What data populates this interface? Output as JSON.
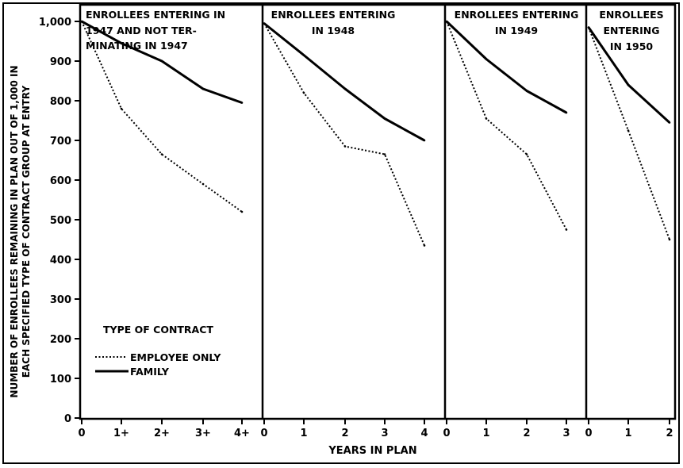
{
  "chart_data": {
    "type": "line",
    "xlabel": "YEARS IN PLAN",
    "ylabel_lines": [
      "NUMBER OF ENROLLEES REMAINING IN PLAN OUT OF 1,000 IN",
      "EACH SPECIFIED TYPE OF CONTRACT GROUP AT ENTRY"
    ],
    "ylim": [
      0,
      1000
    ],
    "yticks": [
      "0",
      "100",
      "200",
      "300",
      "400",
      "500",
      "600",
      "700",
      "800",
      "900",
      "1,000"
    ],
    "legend": {
      "title": "TYPE OF CONTRACT",
      "entries": [
        {
          "label": "EMPLOYEE ONLY",
          "style": "dotted"
        },
        {
          "label": "FAMILY",
          "style": "solid"
        }
      ]
    },
    "panels": [
      {
        "title_lines": [
          "ENROLLEES ENTERING IN",
          "1947 AND NOT TER-",
          "MINATING IN 1947"
        ],
        "x": [
          "0",
          "1+",
          "2+",
          "3+",
          "4+"
        ],
        "series": [
          {
            "name": "EMPLOYEE ONLY",
            "values": [
              1000,
              780,
              665,
              590,
              520
            ]
          },
          {
            "name": "FAMILY",
            "values": [
              1000,
              945,
              900,
              830,
              795
            ]
          }
        ]
      },
      {
        "title_lines": [
          "ENROLLEES ENTERING",
          "IN 1948"
        ],
        "x": [
          "0",
          "1",
          "2",
          "3",
          "4"
        ],
        "series": [
          {
            "name": "EMPLOYEE ONLY",
            "values": [
              995,
              820,
              685,
              665,
              435
            ]
          },
          {
            "name": "FAMILY",
            "values": [
              995,
              915,
              830,
              755,
              700
            ]
          }
        ]
      },
      {
        "title_lines": [
          "ENROLLEES ENTERING",
          "IN 1949"
        ],
        "x": [
          "0",
          "1",
          "2",
          "3"
        ],
        "series": [
          {
            "name": "EMPLOYEE ONLY",
            "values": [
              1000,
              755,
              665,
              475
            ]
          },
          {
            "name": "FAMILY",
            "values": [
              1000,
              905,
              825,
              770
            ]
          }
        ]
      },
      {
        "title_lines": [
          "ENROLLEES",
          "ENTERING",
          "IN 1950"
        ],
        "x": [
          "0",
          "1",
          "2"
        ],
        "series": [
          {
            "name": "EMPLOYEE ONLY",
            "values": [
              985,
              725,
              450
            ]
          },
          {
            "name": "FAMILY",
            "values": [
              985,
              840,
              745
            ]
          }
        ]
      }
    ],
    "colors": {
      "line": "#000000",
      "background": "#ffffff"
    }
  }
}
